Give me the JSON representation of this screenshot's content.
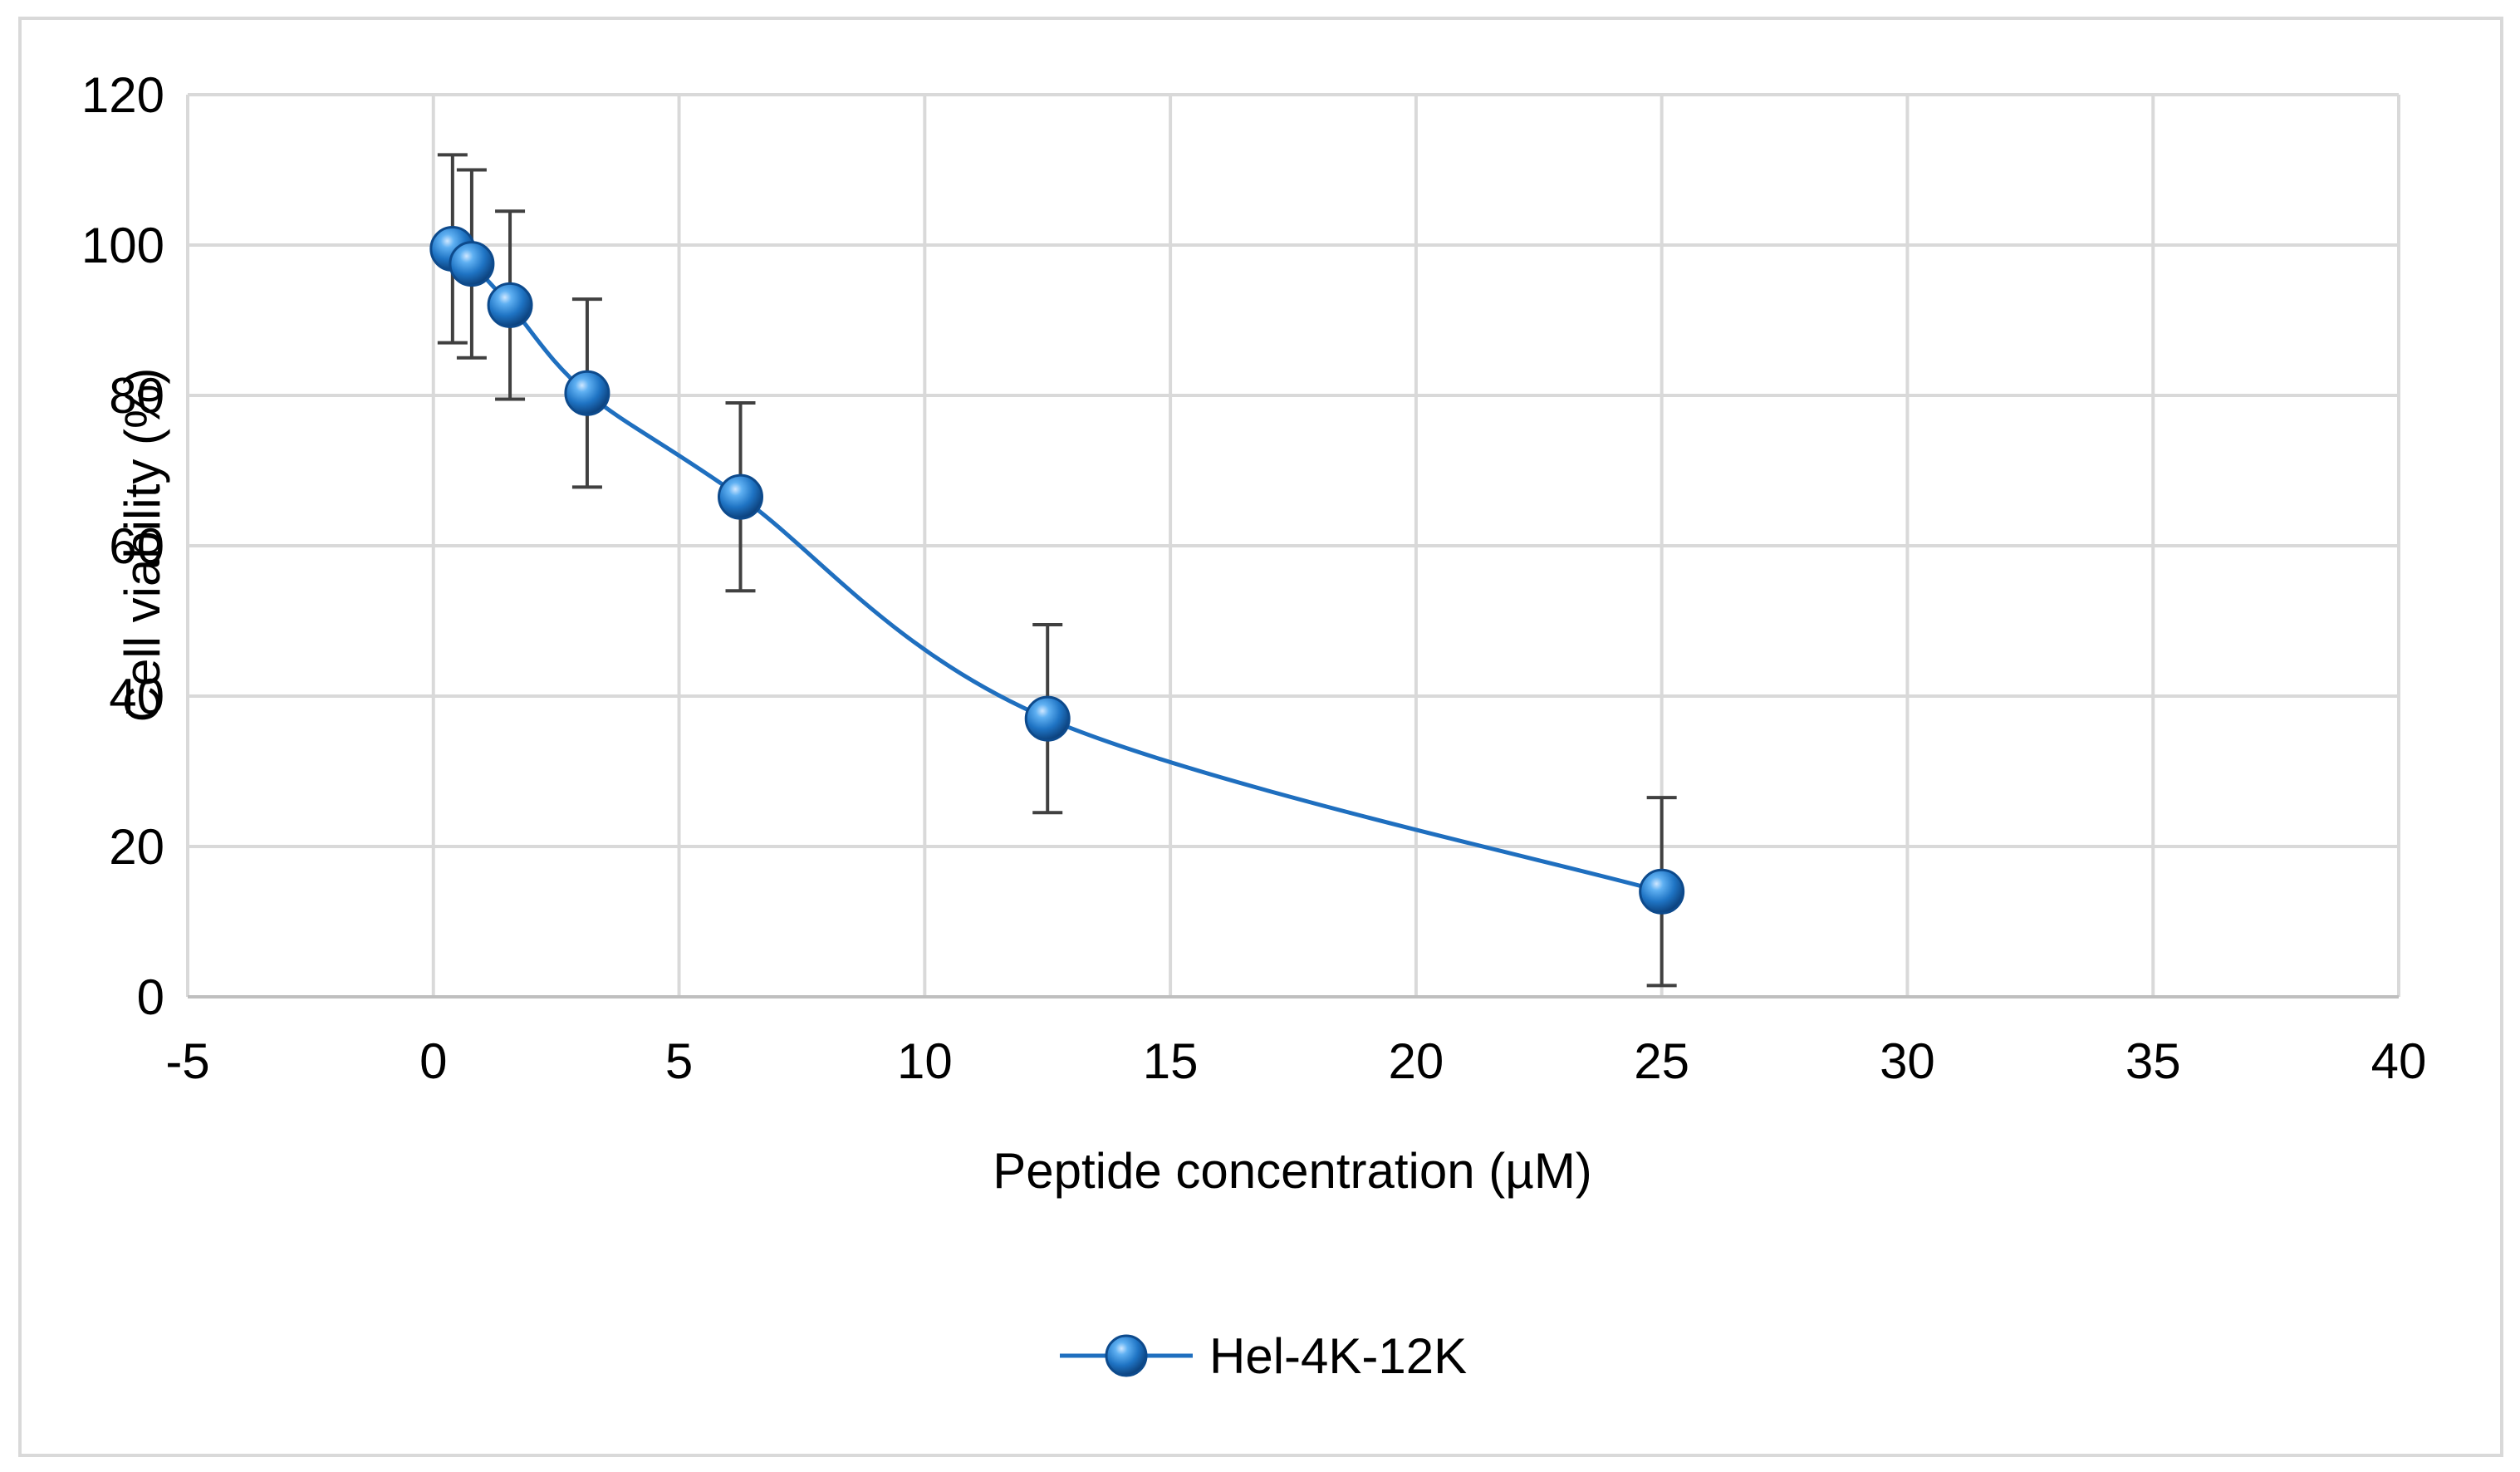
{
  "chart_data": {
    "type": "scatter",
    "title": "",
    "xlabel": "Peptide concentration (µM)",
    "ylabel": "Cell viability (%)",
    "xlim": [
      -5,
      40
    ],
    "ylim": [
      0,
      120
    ],
    "x_ticks": [
      -5,
      0,
      5,
      10,
      15,
      20,
      25,
      30,
      35,
      40
    ],
    "y_ticks": [
      0,
      20,
      40,
      60,
      80,
      100,
      120
    ],
    "grid": true,
    "smooth_line": true,
    "legend_position": "bottom-center",
    "series": [
      {
        "name": "Hel-4K-12K",
        "color": "#1f6fbf",
        "marker": "sphere",
        "x": [
          0.39,
          0.78,
          1.56,
          3.13,
          6.25,
          12.5,
          25
        ],
        "y": [
          99.5,
          97.5,
          92,
          80.3,
          66.5,
          37,
          14
        ],
        "error": [
          12.5,
          12.5,
          12.5,
          12.5,
          12.5,
          12.5,
          12.5
        ]
      }
    ]
  }
}
